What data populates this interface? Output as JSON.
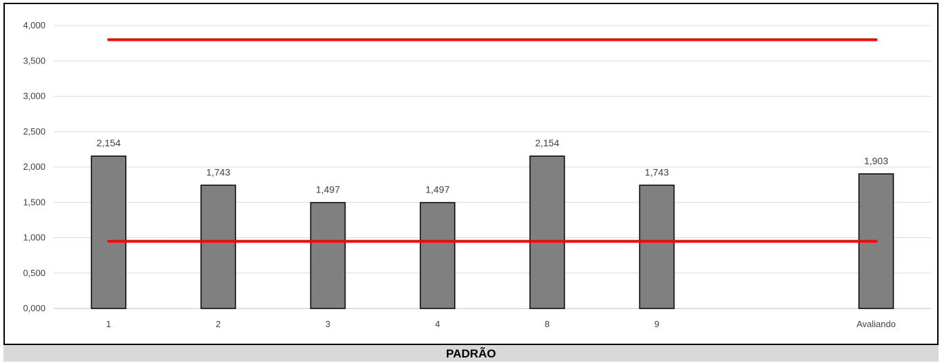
{
  "chart_data": {
    "type": "bar",
    "categories": [
      "1",
      "2",
      "3",
      "4",
      "8",
      "9",
      "",
      "Avaliando"
    ],
    "values": [
      2.154,
      1.743,
      1.497,
      1.497,
      2.154,
      1.743,
      null,
      1.903
    ],
    "data_labels": [
      "2,154",
      "1,743",
      "1,497",
      "1,497",
      "2,154",
      "1,743",
      "",
      "1,903"
    ],
    "reference_lines": [
      {
        "value": 3.8,
        "color": "#ff0000"
      },
      {
        "value": 0.95,
        "color": "#ff0000"
      }
    ],
    "ylim": [
      0,
      4
    ],
    "y_ticks": [
      "0,000",
      "0,500",
      "1,000",
      "1,500",
      "2,000",
      "2,500",
      "3,000",
      "3,500",
      "4,000"
    ],
    "grid": true,
    "bar_color": "#808080",
    "xlabel": "PADRÃO"
  }
}
